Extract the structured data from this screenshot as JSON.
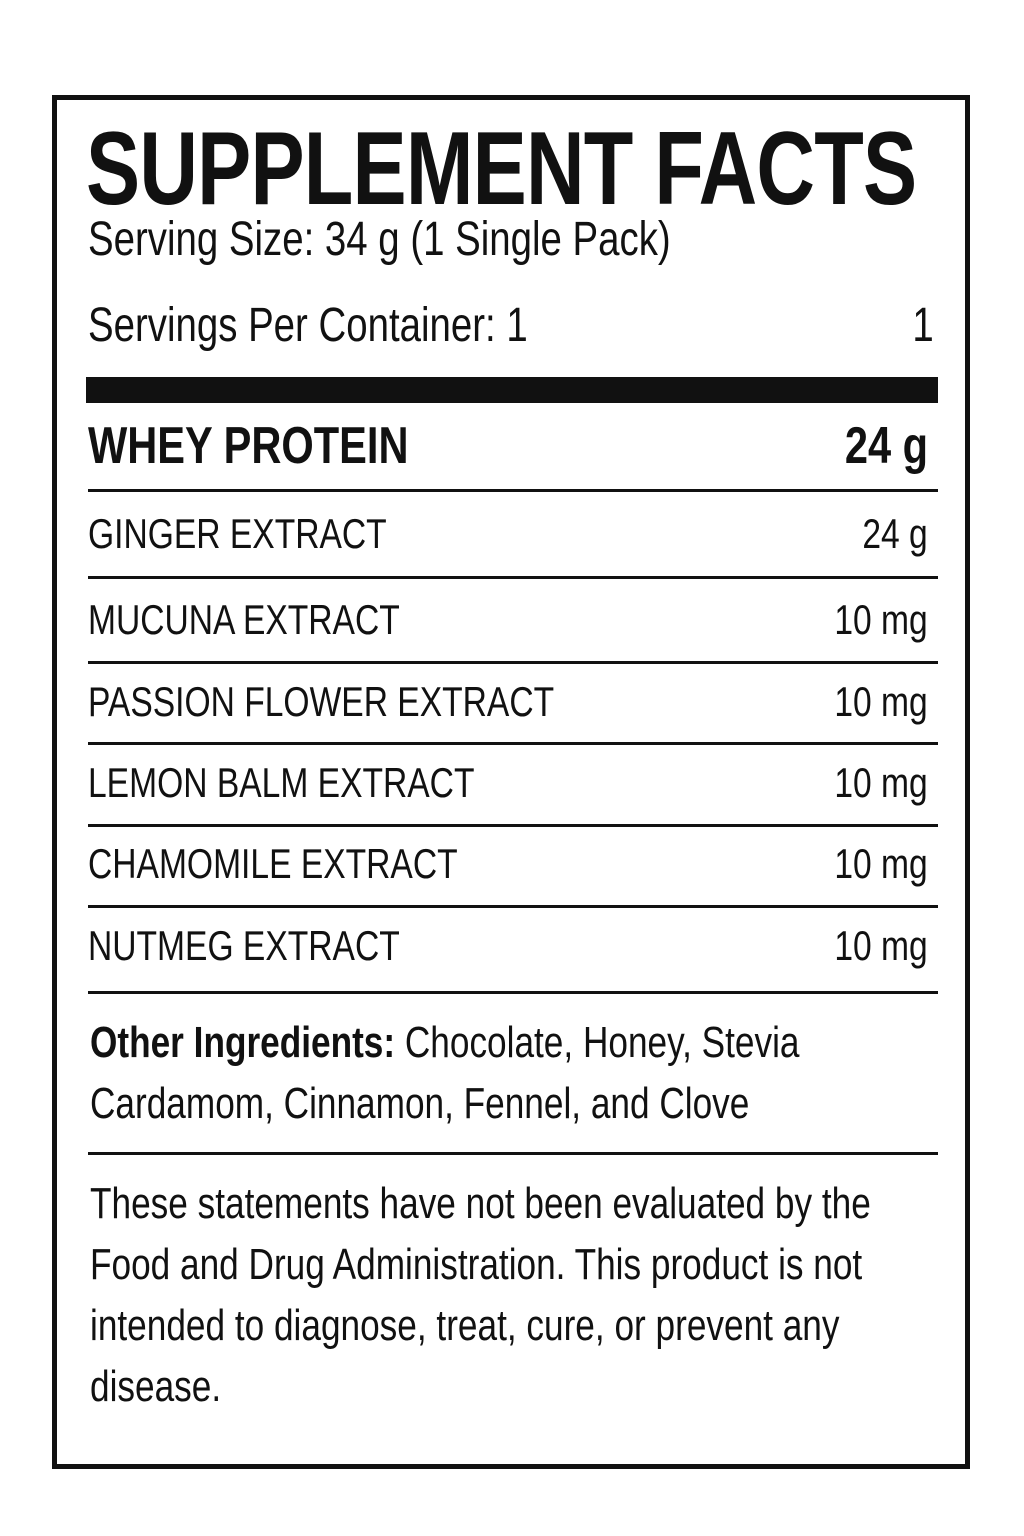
{
  "title": "SUPPLEMENT FACTS",
  "serving_size": "Serving Size: 34 g (1 Single Pack)",
  "servings_per_container": "Servings Per Container: 1",
  "servings_per_container_right": "1",
  "ingredients": [
    {
      "name": "WHEY PROTEIN",
      "amount": "24 g"
    },
    {
      "name": "GINGER EXTRACT",
      "amount": "24 g"
    },
    {
      "name": "MUCUNA EXTRACT",
      "amount": "10 mg"
    },
    {
      "name": "PASSION FLOWER EXTRACT",
      "amount": "10 mg"
    },
    {
      "name": "LEMON BALM EXTRACT",
      "amount": "10 mg"
    },
    {
      "name": "CHAMOMILE EXTRACT",
      "amount": "10 mg"
    },
    {
      "name": "NUTMEG EXTRACT",
      "amount": "10 mg"
    }
  ],
  "other_ingredients": {
    "label": "Other Ingredients:",
    "text": " Chocolate, Honey, Stevia Cardamom, Cinnamon, Fennel, and Clove"
  },
  "disclaimer": "These statements have not been evaluated by the Food and Drug Administration. This product is not intended to diagnose, treat, cure, or prevent any disease."
}
